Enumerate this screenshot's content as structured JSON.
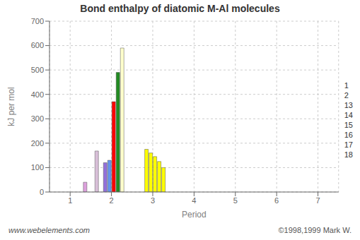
{
  "chart_data": {
    "type": "bar",
    "title": "Bond enthalpy of diatomic M-Al molecules",
    "xlabel": "Period",
    "ylabel": "kJ per mol",
    "categories": [
      "1",
      "2",
      "3",
      "4",
      "5",
      "6",
      "7"
    ],
    "series": [
      {
        "name": "1",
        "values": [
          null,
          168,
          null,
          null,
          null,
          null,
          null
        ],
        "colors": [
          null,
          "#d8bfd8",
          null,
          null,
          null,
          null,
          null
        ]
      },
      {
        "name": "2",
        "values": [
          null,
          null,
          null,
          null,
          null,
          null,
          null
        ]
      },
      {
        "name": "13",
        "values": [
          null,
          120,
          175,
          null,
          null,
          null,
          null
        ],
        "colors": [
          null,
          "#9370db",
          "#ffff00",
          null,
          null,
          null,
          null
        ]
      },
      {
        "name": "14",
        "values": [
          null,
          130,
          160,
          null,
          null,
          null,
          null
        ],
        "colors": [
          null,
          "#6495ed",
          "#ffff00",
          null,
          null,
          null,
          null
        ]
      },
      {
        "name": "15",
        "values": [
          null,
          370,
          145,
          null,
          null,
          null,
          null
        ],
        "colors": [
          null,
          "#ff0000",
          "#ffff00",
          null,
          null,
          null,
          null
        ]
      },
      {
        "name": "16",
        "values": [
          null,
          490,
          125,
          null,
          null,
          null,
          null
        ],
        "colors": [
          null,
          "#228b22",
          "#ffff00",
          null,
          null,
          null,
          null
        ]
      },
      {
        "name": "17",
        "values": [
          null,
          590,
          100,
          null,
          null,
          null,
          null
        ],
        "colors": [
          null,
          "#ffffcc",
          "#ffff00",
          null,
          null,
          null,
          null
        ]
      },
      {
        "name": "18",
        "values": [
          40,
          null,
          null,
          null,
          null,
          null,
          null
        ],
        "colors": [
          "#dda0dd",
          null,
          null,
          null,
          null,
          null,
          null
        ]
      }
    ],
    "ylim": [
      0,
      700
    ],
    "yticks": [
      0,
      100,
      200,
      300,
      400,
      500,
      600,
      700
    ],
    "grid": true,
    "annotations": [
      "www.webelements.com",
      "©1998,1999 Mark W."
    ]
  }
}
